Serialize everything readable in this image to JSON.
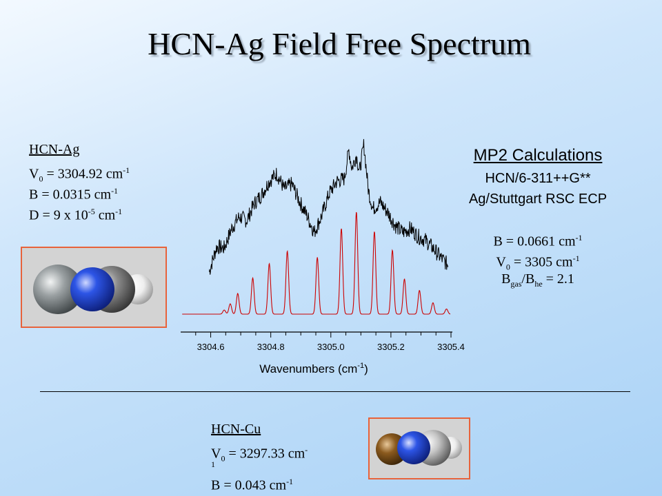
{
  "title": "HCN-Ag Field Free Spectrum",
  "ag_params": {
    "heading": "HCN-Ag",
    "v0": {
      "label": "V",
      "sub": "0",
      "value": " = 3304.92 cm",
      "sup": "-1"
    },
    "b": {
      "label": "B = 0.0315 cm",
      "sup": "-1"
    },
    "d": {
      "label": "D = 9 x 10",
      "exp": "-5",
      "unit": " cm",
      "sup": "-1"
    }
  },
  "mp2": {
    "heading": "MP2 Calculations",
    "line1": "HCN/6-311++G**",
    "line2": "Ag/Stuttgart RSC ECP",
    "b": {
      "label": "B = 0.0661 cm",
      "sup": "-1"
    },
    "v0": {
      "label": "V",
      "sub": "0",
      "value": " = 3305 cm",
      "sup": "-1"
    },
    "ratio": {
      "b1": "B",
      "sub1": "gas",
      "mid": "/B",
      "sub2": "he",
      "value": " = 2.1"
    }
  },
  "cu_params": {
    "heading": "HCN-Cu",
    "v0": {
      "label": "V",
      "sub": "0",
      "value": " = 3297.33 cm",
      "sup": "-"
    },
    "wrap": "1",
    "b": {
      "label": "B = 0.043 cm",
      "sup": "-1"
    }
  },
  "colors": {
    "experimental": "#000000",
    "simulated": "#cc0000",
    "frame": "#e8623a",
    "silver_atom": "#8e9496",
    "nitrogen_atom": "#2a4fd8",
    "carbon_atom": "#7a7a7a",
    "hydrogen_atom": "#f0f0f0",
    "copper_atom": "#8b5a1e"
  },
  "chart_data": {
    "type": "line",
    "xlabel": "Wavenumbers (cm",
    "xlabel_sup": "-1",
    "xlabel_tail": ")",
    "xlim": [
      3304.5,
      3305.4
    ],
    "tick_labels": [
      "3304.6",
      "3304.8",
      "3305.0",
      "3305.2",
      "3305.4"
    ],
    "ticks": [
      3304.6,
      3304.8,
      3305.0,
      3305.2,
      3305.4
    ],
    "grid": false,
    "series": [
      {
        "role": "experimental",
        "color": "#000000",
        "x": [
          3304.595,
          3304.62,
          3304.645,
          3304.67,
          3304.695,
          3304.72,
          3304.745,
          3304.77,
          3304.795,
          3304.82,
          3304.845,
          3304.87,
          3304.895,
          3304.92,
          3304.945,
          3304.97,
          3304.995,
          3305.02,
          3305.045,
          3305.06,
          3305.07,
          3305.085,
          3305.095,
          3305.11,
          3305.125,
          3305.14,
          3305.165,
          3305.19,
          3305.215,
          3305.24,
          3305.265,
          3305.29,
          3305.315,
          3305.34,
          3305.365,
          3305.39
        ],
        "y": [
          0.03,
          0.22,
          0.21,
          0.36,
          0.45,
          0.42,
          0.55,
          0.62,
          0.72,
          0.78,
          0.66,
          0.7,
          0.57,
          0.46,
          0.33,
          0.46,
          0.63,
          0.72,
          0.74,
          0.96,
          0.82,
          0.92,
          0.79,
          1.0,
          0.65,
          0.51,
          0.56,
          0.48,
          0.38,
          0.33,
          0.36,
          0.3,
          0.27,
          0.21,
          0.14,
          0.08
        ]
      },
      {
        "role": "simulated",
        "color": "#cc0000",
        "peaks_x": [
          3304.645,
          3304.665,
          3304.69,
          3304.74,
          3304.795,
          3304.855,
          3304.955,
          3305.035,
          3305.085,
          3305.145,
          3305.205,
          3305.245,
          3305.295,
          3305.34,
          3305.385
        ],
        "peaks_y": [
          0.04,
          0.1,
          0.2,
          0.35,
          0.49,
          0.61,
          0.55,
          0.83,
          0.99,
          0.8,
          0.62,
          0.34,
          0.23,
          0.11,
          0.05
        ],
        "baseline": 0.0
      }
    ]
  }
}
